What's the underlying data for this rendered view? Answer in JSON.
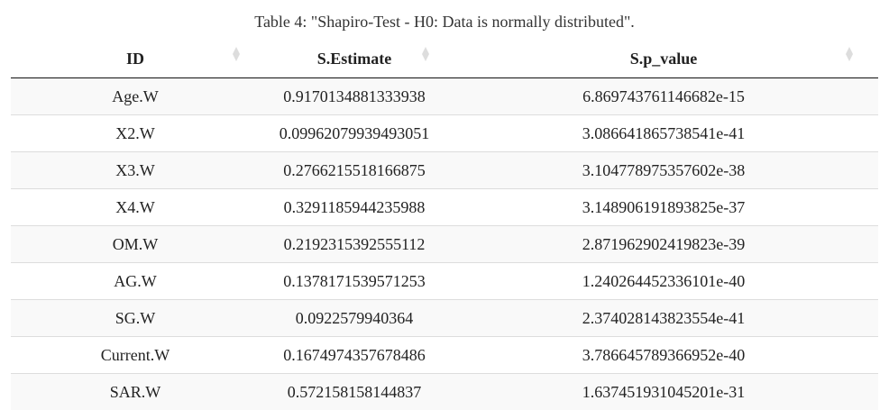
{
  "caption": "Table 4: \"Shapiro-Test - H0: Data is normally distributed\".",
  "columns": [
    {
      "label": "ID"
    },
    {
      "label": "S.Estimate"
    },
    {
      "label": "S.p_value"
    }
  ],
  "rows": [
    [
      "Age.W",
      "0.9170134881333938",
      "6.869743761146682e-15"
    ],
    [
      "X2.W",
      "0.09962079939493051",
      "3.086641865738541e-41"
    ],
    [
      "X3.W",
      "0.276621551816687​5",
      "3.104778975357602e-38"
    ],
    [
      "X4.W",
      "0.3291185944235988",
      "3.148906191893825e-37"
    ],
    [
      "OM.W",
      "0.2192315392555112",
      "2.871962902419823e-39"
    ],
    [
      "AG.W",
      "0.1378171539571253",
      "1.240264452336101e-40"
    ],
    [
      "SG.W",
      "0.0922579940364",
      "2.374028143823554e-41"
    ],
    [
      "Current.W",
      "0.1674974357678486",
      "3.786645789366952e-40"
    ],
    [
      "SAR.W",
      "0.57215815814483​7",
      "1.637451931045201e-31"
    ]
  ]
}
